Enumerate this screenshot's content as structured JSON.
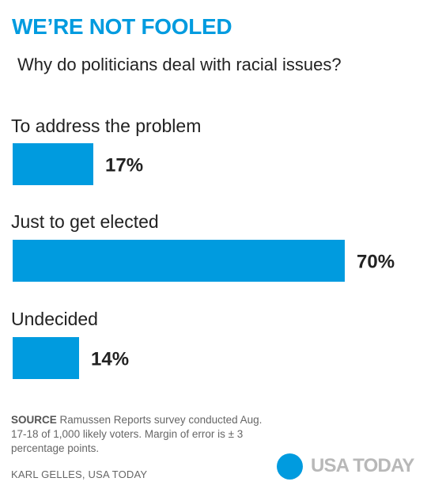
{
  "header": {
    "title": "WE’RE NOT FOOLED",
    "subtitle": "Why do politicians deal with racial issues?"
  },
  "chart_data": {
    "type": "bar",
    "orientation": "horizontal",
    "title": "WE’RE NOT FOOLED",
    "subtitle": "Why do politicians deal with racial issues?",
    "categories": [
      "To address the problem",
      "Just to get elected",
      "Undecided"
    ],
    "values": [
      17,
      70,
      14
    ],
    "value_labels": [
      "17%",
      "70%",
      "14%"
    ],
    "unit": "%",
    "xlim": [
      0,
      70
    ],
    "grid": false,
    "legend": "none",
    "bar_color": "#009bdf"
  },
  "footer": {
    "source_label": "SOURCE",
    "source_text": "Ramussen Reports survey conducted Aug. 17-18 of 1,000 likely voters. Margin of error is ± 3 percentage points.",
    "credit": "KARL GELLES, USA TODAY",
    "logo_text": "USA TODAY"
  },
  "colors": {
    "accent": "#009bdf",
    "text": "#222222",
    "muted": "#666666",
    "logo_text": "#b8b8b8"
  }
}
